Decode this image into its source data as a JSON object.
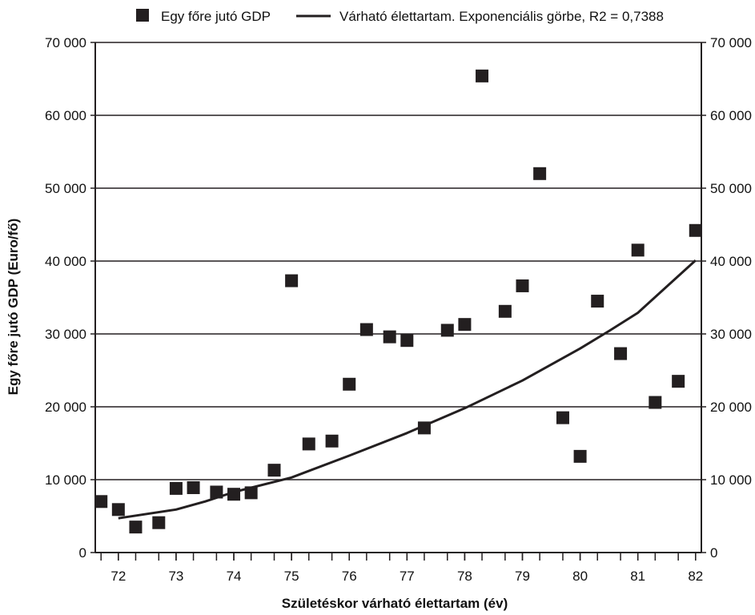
{
  "chart_data": {
    "type": "scatter",
    "xlabel": "Születéskor várható élettartam (év)",
    "ylabel": "Egy főre jutó GDP (Euro/fő)",
    "xlim": [
      71.6,
      82.1
    ],
    "ylim": [
      0,
      70000
    ],
    "x_ticks": [
      72,
      73,
      74,
      75,
      76,
      77,
      78,
      79,
      80,
      81,
      82
    ],
    "x_tick_labels": [
      "72",
      "73",
      "74",
      "75",
      "76",
      "77",
      "78",
      "79",
      "80",
      "81",
      "82"
    ],
    "y_ticks": [
      0,
      10000,
      20000,
      30000,
      40000,
      50000,
      60000,
      70000
    ],
    "y_tick_labels": [
      "0",
      "10 000",
      "20 000",
      "30 000",
      "40 000",
      "50 000",
      "60 000",
      "70 000"
    ],
    "grid": "horizontal",
    "legend_position": "top",
    "series": [
      {
        "name": "Egy főre jutó GDP",
        "kind": "scatter",
        "marker": "square",
        "color": "#231f20",
        "points": [
          {
            "x": 71.7,
            "y": 7000
          },
          {
            "x": 72.0,
            "y": 5900
          },
          {
            "x": 72.3,
            "y": 3500
          },
          {
            "x": 72.7,
            "y": 4100
          },
          {
            "x": 73.0,
            "y": 8800
          },
          {
            "x": 73.3,
            "y": 8900
          },
          {
            "x": 73.7,
            "y": 8300
          },
          {
            "x": 74.0,
            "y": 8000
          },
          {
            "x": 74.3,
            "y": 8200
          },
          {
            "x": 74.7,
            "y": 11300
          },
          {
            "x": 75.0,
            "y": 37300
          },
          {
            "x": 75.3,
            "y": 14900
          },
          {
            "x": 75.7,
            "y": 15300
          },
          {
            "x": 76.0,
            "y": 23100
          },
          {
            "x": 76.3,
            "y": 30600
          },
          {
            "x": 76.7,
            "y": 29600
          },
          {
            "x": 77.0,
            "y": 29100
          },
          {
            "x": 77.3,
            "y": 17100
          },
          {
            "x": 77.7,
            "y": 30500
          },
          {
            "x": 78.0,
            "y": 31300
          },
          {
            "x": 78.3,
            "y": 65400
          },
          {
            "x": 78.7,
            "y": 33100
          },
          {
            "x": 79.0,
            "y": 36600
          },
          {
            "x": 79.3,
            "y": 52000
          },
          {
            "x": 79.7,
            "y": 18500
          },
          {
            "x": 80.0,
            "y": 13200
          },
          {
            "x": 80.3,
            "y": 34500
          },
          {
            "x": 80.7,
            "y": 27300
          },
          {
            "x": 81.0,
            "y": 41500
          },
          {
            "x": 81.3,
            "y": 20600
          },
          {
            "x": 81.7,
            "y": 23500
          },
          {
            "x": 82.0,
            "y": 44200
          }
        ]
      },
      {
        "name": "Várható élettartam. Exponenciális görbe, R2 = 0,7388",
        "kind": "line",
        "color": "#231f20",
        "points": [
          {
            "x": 72.0,
            "y": 4700
          },
          {
            "x": 73.0,
            "y": 5900
          },
          {
            "x": 73.5,
            "y": 7000
          },
          {
            "x": 74.0,
            "y": 8300
          },
          {
            "x": 75.0,
            "y": 10300
          },
          {
            "x": 76.0,
            "y": 13300
          },
          {
            "x": 77.0,
            "y": 16400
          },
          {
            "x": 78.0,
            "y": 19800
          },
          {
            "x": 79.0,
            "y": 23600
          },
          {
            "x": 80.0,
            "y": 28000
          },
          {
            "x": 80.5,
            "y": 30400
          },
          {
            "x": 81.0,
            "y": 32900
          },
          {
            "x": 82.0,
            "y": 40100
          }
        ]
      }
    ]
  }
}
